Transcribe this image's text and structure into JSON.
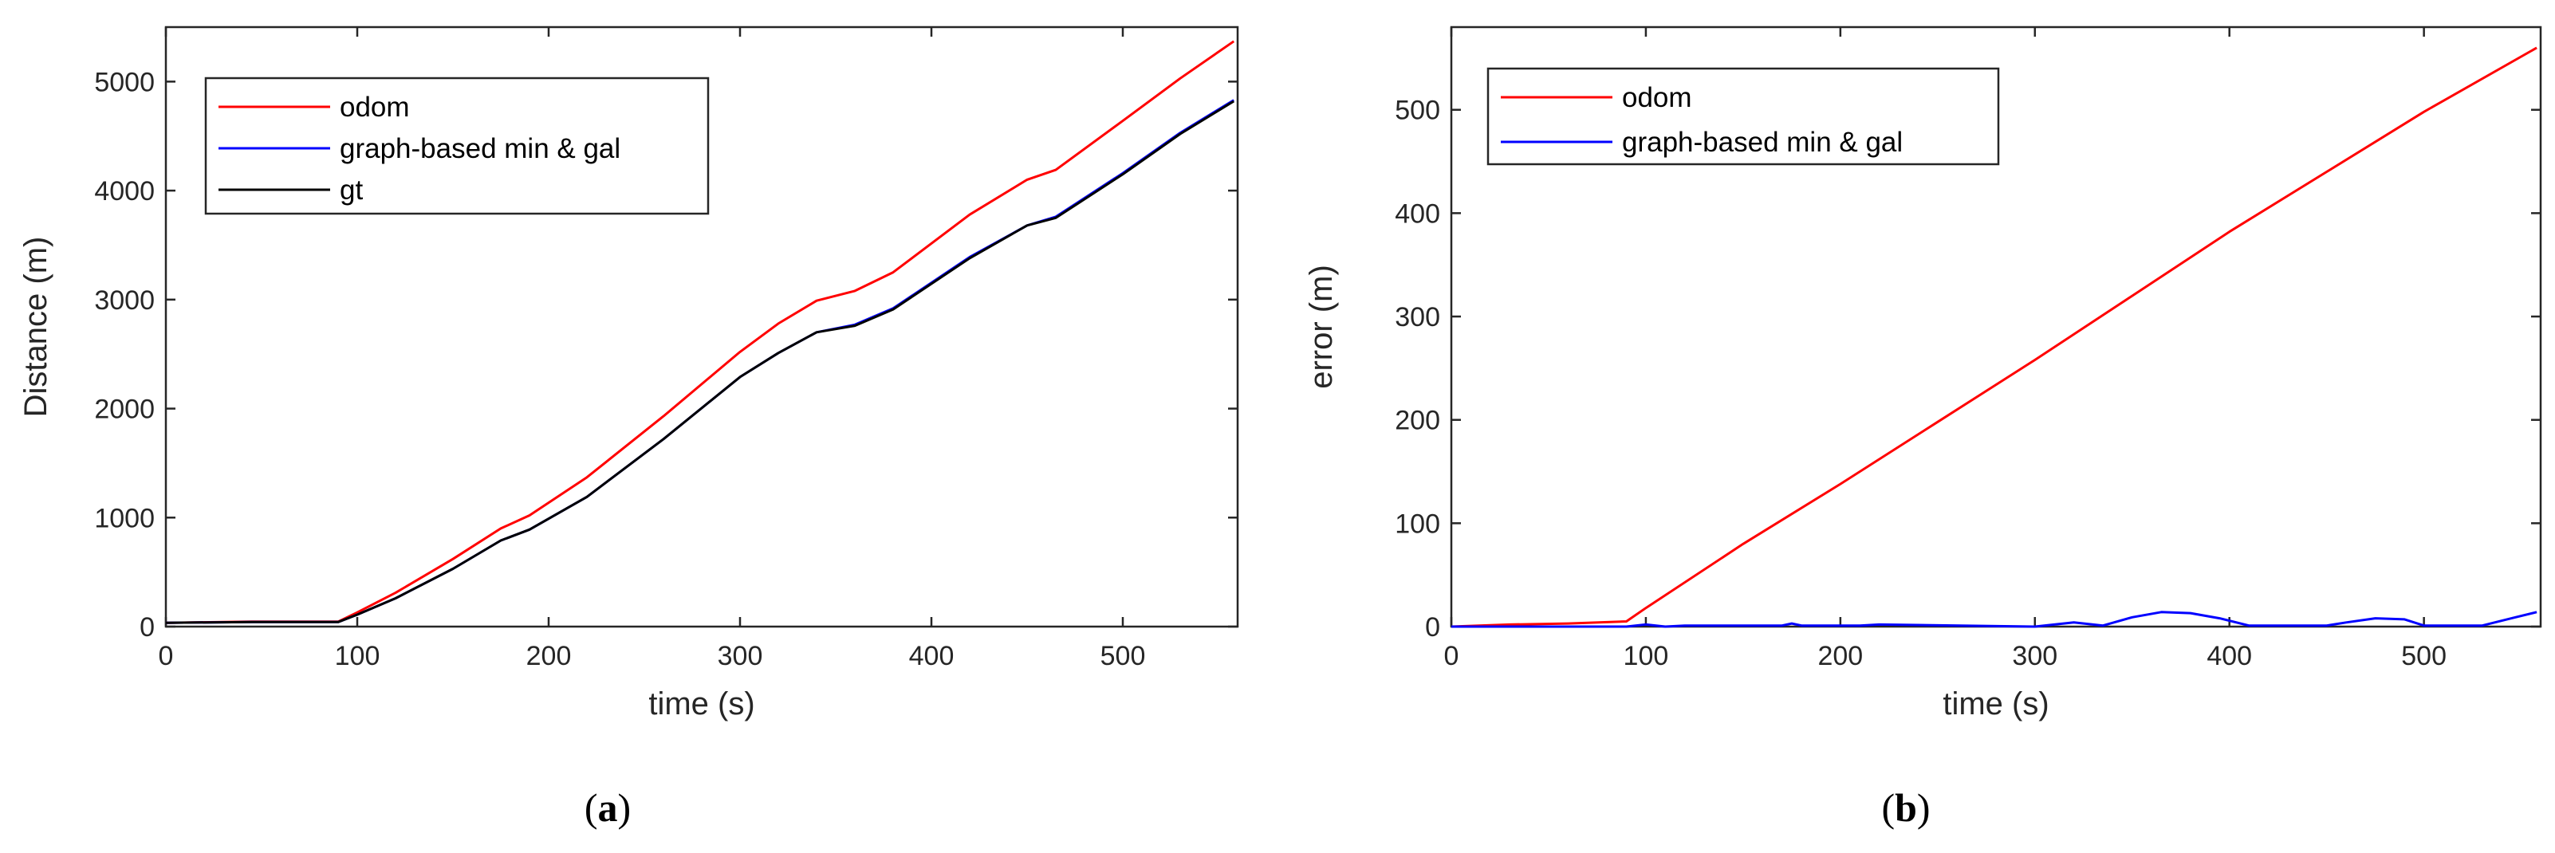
{
  "chart_data": [
    {
      "type": "line",
      "panel_label": {
        "open": "(",
        "letter": "a",
        "close": ")"
      },
      "xlabel": "time (s)",
      "ylabel": "Distance (m)",
      "xlim": [
        0,
        560
      ],
      "ylim": [
        0,
        5500
      ],
      "xticks": [
        0,
        100,
        200,
        300,
        400,
        500
      ],
      "yticks": [
        0,
        1000,
        2000,
        3000,
        4000,
        5000
      ],
      "grid": false,
      "legend_position": "top-left",
      "series": [
        {
          "name": "odom",
          "color": "#ff0000",
          "x": [
            0,
            45,
            90,
            100,
            120,
            150,
            175,
            190,
            220,
            260,
            300,
            320,
            340,
            360,
            380,
            420,
            450,
            465,
            500,
            530,
            558
          ],
          "y": [
            35,
            45,
            45,
            130,
            310,
            620,
            900,
            1020,
            1370,
            1930,
            2520,
            2780,
            2990,
            3080,
            3250,
            3780,
            4100,
            4190,
            4640,
            5030,
            5370
          ]
        },
        {
          "name": "graph-based min & gal",
          "color": "#0000ff",
          "x": [
            0,
            45,
            90,
            100,
            120,
            150,
            175,
            190,
            220,
            260,
            300,
            320,
            340,
            360,
            380,
            420,
            450,
            465,
            500,
            530,
            558
          ],
          "y": [
            35,
            42,
            42,
            110,
            260,
            530,
            790,
            890,
            1190,
            1720,
            2290,
            2510,
            2700,
            2770,
            2920,
            3390,
            3680,
            3760,
            4160,
            4530,
            4830
          ]
        },
        {
          "name": "gt",
          "color": "#000000",
          "x": [
            0,
            45,
            90,
            100,
            120,
            150,
            175,
            190,
            220,
            260,
            300,
            320,
            340,
            360,
            380,
            420,
            450,
            465,
            500,
            530,
            558
          ],
          "y": [
            35,
            42,
            42,
            110,
            260,
            530,
            790,
            890,
            1190,
            1720,
            2290,
            2510,
            2700,
            2760,
            2910,
            3380,
            3680,
            3750,
            4150,
            4520,
            4820
          ]
        }
      ]
    },
    {
      "type": "line",
      "panel_label": {
        "open": "(",
        "letter": "b",
        "close": ")"
      },
      "xlabel": "time (s)",
      "ylabel": "error (m)",
      "xlim": [
        0,
        560
      ],
      "ylim": [
        0,
        580
      ],
      "xticks": [
        0,
        100,
        200,
        300,
        400,
        500
      ],
      "yticks": [
        0,
        100,
        200,
        300,
        400,
        500
      ],
      "grid": false,
      "legend_position": "top-left",
      "series": [
        {
          "name": "odom",
          "color": "#ff0000",
          "x": [
            0,
            30,
            60,
            90,
            100,
            150,
            200,
            250,
            300,
            350,
            400,
            450,
            500,
            558
          ],
          "y": [
            0,
            2,
            3,
            5,
            18,
            80,
            138,
            198,
            258,
            320,
            382,
            440,
            498,
            560
          ]
        },
        {
          "name": "graph-based min & gal",
          "color": "#0000ff",
          "x": [
            0,
            90,
            100,
            110,
            120,
            170,
            175,
            180,
            210,
            220,
            300,
            310,
            320,
            335,
            350,
            365,
            380,
            395,
            410,
            450,
            460,
            475,
            490,
            500,
            530,
            545,
            558
          ],
          "y": [
            0,
            0,
            2,
            0,
            1,
            1,
            3,
            1,
            1,
            2,
            0,
            2,
            4,
            1,
            9,
            14,
            13,
            8,
            1,
            1,
            4,
            8,
            7,
            1,
            1,
            8,
            14
          ]
        }
      ]
    }
  ]
}
